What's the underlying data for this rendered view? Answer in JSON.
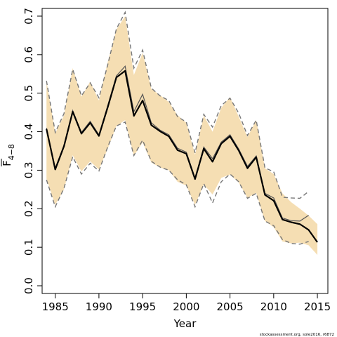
{
  "chart_data": {
    "type": "line",
    "xlabel": "Year",
    "ylabel": "F",
    "ylabel_sub": "4−8",
    "xlim": [
      1983.5,
      2016.2
    ],
    "ylim": [
      -0.02,
      0.72
    ],
    "xticks": [
      "1985",
      "1990",
      "1995",
      "2000",
      "2005",
      "2010",
      "2015"
    ],
    "yticks": [
      "0.0",
      "0.1",
      "0.2",
      "0.3",
      "0.4",
      "0.5",
      "0.6",
      "0.7"
    ],
    "grid": false,
    "credit": "stockassessment.org, sole2016, r6872",
    "colors": {
      "band": "#f5deb3",
      "line": "#000000",
      "dashed": "#777777"
    },
    "x": [
      1984,
      1985,
      1986,
      1987,
      1988,
      1989,
      1990,
      1991,
      1992,
      1993,
      1994,
      1995,
      1996,
      1997,
      1998,
      1999,
      2000,
      2001,
      2002,
      2003,
      2004,
      2005,
      2006,
      2007,
      2008,
      2009,
      2010,
      2011,
      2012,
      2013,
      2014,
      2015
    ],
    "estimate": [
      0.407,
      0.302,
      0.362,
      0.452,
      0.395,
      0.423,
      0.389,
      0.463,
      0.541,
      0.558,
      0.441,
      0.481,
      0.417,
      0.401,
      0.388,
      0.352,
      0.343,
      0.277,
      0.356,
      0.322,
      0.369,
      0.388,
      0.351,
      0.305,
      0.334,
      0.236,
      0.221,
      0.172,
      0.165,
      0.16,
      0.145,
      0.113
    ],
    "band_upper": [
      0.532,
      0.396,
      0.442,
      0.565,
      0.491,
      0.53,
      0.481,
      0.58,
      0.665,
      0.7,
      0.547,
      0.605,
      0.511,
      0.495,
      0.477,
      0.443,
      0.423,
      0.34,
      0.442,
      0.4,
      0.462,
      0.49,
      0.439,
      0.386,
      0.43,
      0.305,
      0.29,
      0.24,
      0.217,
      0.2,
      0.182,
      0.16
    ],
    "band_lower": [
      0.278,
      0.21,
      0.25,
      0.339,
      0.297,
      0.323,
      0.302,
      0.355,
      0.415,
      0.43,
      0.337,
      0.372,
      0.32,
      0.307,
      0.3,
      0.27,
      0.26,
      0.21,
      0.263,
      0.237,
      0.28,
      0.289,
      0.268,
      0.228,
      0.241,
      0.168,
      0.152,
      0.115,
      0.11,
      0.112,
      0.105,
      0.08
    ],
    "series": [
      {
        "values": [
          0.407,
          0.302,
          0.362,
          0.452,
          0.395,
          0.423,
          0.389,
          0.463,
          0.541,
          0.558,
          0.441,
          0.481,
          0.417,
          0.401,
          0.388,
          0.352,
          0.343,
          0.277,
          0.356,
          0.322,
          0.369,
          0.388,
          0.351,
          0.305,
          0.334,
          0.236,
          0.221,
          0.172,
          0.165,
          0.16,
          0.145,
          0.113
        ]
      }
    ],
    "previous": {
      "x": [
        1984,
        1985,
        1986,
        1987,
        1988,
        1989,
        1990,
        1991,
        1992,
        1993,
        1994,
        1995,
        1996,
        1997,
        1998,
        1999,
        2000,
        2001,
        2002,
        2003,
        2004,
        2005,
        2006,
        2007,
        2008,
        2009,
        2010,
        2011,
        2012,
        2013,
        2014
      ],
      "estimate": [
        0.41,
        0.305,
        0.365,
        0.455,
        0.398,
        0.427,
        0.392,
        0.467,
        0.545,
        0.57,
        0.452,
        0.497,
        0.423,
        0.404,
        0.392,
        0.357,
        0.347,
        0.28,
        0.36,
        0.33,
        0.373,
        0.392,
        0.355,
        0.31,
        0.337,
        0.24,
        0.228,
        0.176,
        0.169,
        0.168,
        0.183
      ],
      "upper": [
        0.532,
        0.398,
        0.447,
        0.562,
        0.493,
        0.527,
        0.488,
        0.573,
        0.667,
        0.71,
        0.565,
        0.612,
        0.513,
        0.493,
        0.481,
        0.439,
        0.425,
        0.345,
        0.445,
        0.412,
        0.468,
        0.487,
        0.448,
        0.39,
        0.43,
        0.306,
        0.296,
        0.23,
        0.228,
        0.227,
        0.245
      ],
      "lower": [
        0.275,
        0.205,
        0.253,
        0.335,
        0.29,
        0.318,
        0.298,
        0.36,
        0.415,
        0.425,
        0.338,
        0.378,
        0.323,
        0.308,
        0.3,
        0.275,
        0.262,
        0.205,
        0.265,
        0.215,
        0.27,
        0.29,
        0.27,
        0.227,
        0.24,
        0.168,
        0.156,
        0.12,
        0.11,
        0.108,
        0.115
      ]
    }
  }
}
